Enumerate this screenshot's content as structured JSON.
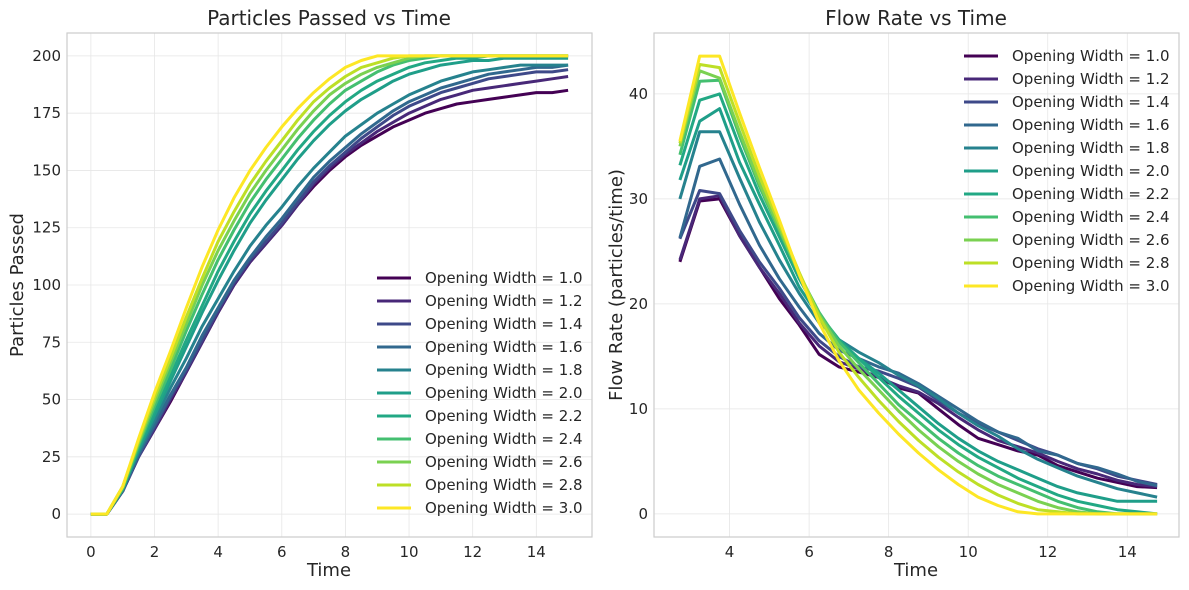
{
  "chart_data": [
    {
      "type": "line",
      "title": "Particles Passed vs Time",
      "xlabel": "Time",
      "ylabel": "Particles Passed",
      "xlim": [
        -0.75,
        15.75
      ],
      "ylim": [
        -10,
        210
      ],
      "xticks": [
        "0",
        "2",
        "4",
        "6",
        "8",
        "10",
        "12",
        "14"
      ],
      "yticks": [
        "0",
        "25",
        "50",
        "75",
        "100",
        "125",
        "150",
        "175",
        "200"
      ],
      "grid": true,
      "legend_position": "bottom-right",
      "x": [
        0,
        0.5,
        1,
        1.5,
        2,
        2.5,
        3,
        3.5,
        4,
        4.5,
        5,
        5.5,
        6,
        6.5,
        7,
        7.5,
        8,
        8.5,
        9,
        9.5,
        10,
        10.5,
        11,
        11.5,
        12,
        12.5,
        13,
        13.5,
        14,
        14.5,
        15
      ],
      "series": [
        {
          "name": "Opening Width = 1.0",
          "color": "#440154",
          "values": [
            0,
            0,
            10,
            25,
            37,
            49,
            62,
            75,
            88,
            100,
            110,
            118,
            126,
            135,
            143,
            150,
            156,
            161,
            165,
            169,
            172,
            175,
            177,
            179,
            180,
            181,
            182,
            183,
            184,
            184,
            185
          ]
        },
        {
          "name": "Opening Width = 1.2",
          "color": "#482878",
          "values": [
            0,
            0,
            10,
            25,
            37,
            50,
            62,
            75,
            88,
            100,
            110,
            118,
            126,
            135,
            144,
            151,
            157,
            162,
            167,
            171,
            175,
            178,
            181,
            183,
            185,
            186,
            187,
            188,
            189,
            190,
            191
          ]
        },
        {
          "name": "Opening Width = 1.4",
          "color": "#3e4989",
          "values": [
            0,
            0,
            10,
            25,
            38,
            51,
            63,
            76,
            89,
            101,
            111,
            119,
            127,
            136,
            145,
            152,
            158,
            164,
            169,
            174,
            178,
            181,
            184,
            186,
            188,
            190,
            191,
            192,
            193,
            193,
            194
          ]
        },
        {
          "name": "Opening Width = 1.6",
          "color": "#31688e",
          "values": [
            0,
            0,
            10,
            26,
            39,
            52,
            64,
            78,
            90,
            102,
            112,
            121,
            129,
            138,
            147,
            154,
            160,
            166,
            171,
            176,
            180,
            183,
            186,
            188,
            190,
            192,
            193,
            194,
            195,
            195,
            196
          ]
        },
        {
          "name": "Opening Width = 1.8",
          "color": "#26828e",
          "values": [
            0,
            0,
            11,
            27,
            41,
            55,
            68,
            82,
            94,
            106,
            117,
            126,
            134,
            143,
            151,
            158,
            165,
            170,
            175,
            179,
            183,
            186,
            189,
            191,
            193,
            194,
            195,
            196,
            196,
            196,
            196
          ]
        },
        {
          "name": "Opening Width = 2.0",
          "color": "#1f9e89",
          "values": [
            0,
            0,
            11,
            28,
            43,
            58,
            73,
            88,
            102,
            115,
            127,
            137,
            146,
            155,
            163,
            170,
            176,
            181,
            185,
            189,
            192,
            194,
            196,
            197,
            198,
            198,
            199,
            199,
            199,
            199,
            199
          ]
        },
        {
          "name": "Opening Width = 2.2",
          "color": "#22a884",
          "values": [
            0,
            0,
            11,
            29,
            45,
            60,
            76,
            91,
            106,
            119,
            131,
            141,
            150,
            159,
            167,
            174,
            180,
            185,
            189,
            192,
            195,
            197,
            198,
            199,
            199,
            200,
            200,
            200,
            200,
            200,
            200
          ]
        },
        {
          "name": "Opening Width = 2.4",
          "color": "#44bf70",
          "values": [
            0,
            0,
            11,
            30,
            47,
            63,
            80,
            96,
            111,
            124,
            136,
            146,
            155,
            164,
            172,
            179,
            185,
            189,
            193,
            196,
            198,
            199,
            200,
            200,
            200,
            200,
            200,
            200,
            200,
            200,
            200
          ]
        },
        {
          "name": "Opening Width = 2.6",
          "color": "#7ad151",
          "values": [
            0,
            0,
            12,
            31,
            49,
            66,
            83,
            100,
            115,
            128,
            140,
            150,
            159,
            168,
            176,
            183,
            188,
            192,
            195,
            197,
            199,
            200,
            200,
            200,
            200,
            200,
            200,
            200,
            200,
            200,
            200
          ]
        },
        {
          "name": "Opening Width = 2.8",
          "color": "#bddf26",
          "values": [
            0,
            0,
            12,
            32,
            51,
            68,
            86,
            103,
            119,
            132,
            144,
            154,
            163,
            172,
            180,
            186,
            191,
            195,
            197,
            199,
            200,
            200,
            200,
            200,
            200,
            200,
            200,
            200,
            200,
            200,
            200
          ]
        },
        {
          "name": "Opening Width = 3.0",
          "color": "#fde725",
          "values": [
            0,
            0,
            12,
            33,
            53,
            71,
            90,
            108,
            124,
            138,
            150,
            160,
            169,
            177,
            184,
            190,
            195,
            198,
            200,
            200,
            200,
            200,
            200,
            200,
            200,
            200,
            200,
            200,
            200,
            200,
            200
          ]
        }
      ]
    },
    {
      "type": "line",
      "title": "Flow Rate vs Time",
      "xlabel": "Time",
      "ylabel": "Flow Rate (particles/time)",
      "xlim": [
        2.1,
        15.3
      ],
      "ylim": [
        -2.2,
        45.8
      ],
      "xticks": [
        "4",
        "6",
        "8",
        "10",
        "12",
        "14"
      ],
      "yticks": [
        "0",
        "10",
        "20",
        "30",
        "40"
      ],
      "grid": true,
      "legend_position": "top-right",
      "x": [
        2.75,
        3.25,
        3.75,
        4.25,
        4.75,
        5.25,
        5.75,
        6.25,
        6.75,
        7.25,
        7.75,
        8.25,
        8.75,
        9.25,
        9.75,
        10.25,
        10.75,
        11.25,
        11.75,
        12.25,
        12.75,
        13.25,
        13.75,
        14.25,
        14.75
      ],
      "series": [
        {
          "name": "Opening Width = 1.0",
          "color": "#440154",
          "values": [
            24,
            29.8,
            30,
            26.5,
            23.5,
            20.5,
            18,
            15.2,
            14,
            13.5,
            13,
            12,
            11.5,
            10,
            8.5,
            7.2,
            6.6,
            6,
            5.6,
            4.6,
            4,
            3.4,
            3,
            2.6,
            2.5
          ]
        },
        {
          "name": "Opening Width = 1.2",
          "color": "#482878",
          "values": [
            24.2,
            30,
            30.3,
            26.5,
            23.5,
            21,
            18.2,
            16,
            14.5,
            13.8,
            13,
            12.2,
            11.6,
            10.5,
            9.2,
            8,
            7,
            6.4,
            5.8,
            5,
            4.3,
            3.8,
            3.2,
            2.8,
            2.6
          ]
        },
        {
          "name": "Opening Width = 1.4",
          "color": "#3e4989",
          "values": [
            26.2,
            30.8,
            30.5,
            27,
            24,
            21.5,
            18.7,
            16.5,
            15,
            14,
            13.6,
            12.9,
            12.1,
            10.8,
            9.6,
            8.6,
            7.8,
            7,
            6.2,
            5.6,
            4.8,
            4.3,
            3.6,
            3.2,
            2.8
          ]
        },
        {
          "name": "Opening Width = 1.6",
          "color": "#31688e",
          "values": [
            26.3,
            33.1,
            33.8,
            29.5,
            25.6,
            22.4,
            19.7,
            17.2,
            15.6,
            14.8,
            14,
            13.4,
            12.4,
            11.2,
            10,
            8.8,
            7.8,
            7.2,
            6,
            5.6,
            4.8,
            4.4,
            3.8,
            3.1,
            2.7
          ]
        },
        {
          "name": "Opening Width = 1.8",
          "color": "#26828e",
          "values": [
            30,
            36.4,
            36.4,
            32,
            27.8,
            24.2,
            21,
            18.2,
            16.6,
            15.4,
            14.4,
            13.2,
            12.2,
            11,
            9.6,
            8.4,
            7.4,
            6.2,
            5.2,
            4.4,
            3.6,
            3,
            2.4,
            2,
            1.6
          ]
        },
        {
          "name": "Opening Width = 2.0",
          "color": "#1f9e89",
          "values": [
            31.8,
            37.4,
            38.6,
            33.5,
            29.5,
            25.6,
            21.6,
            18.8,
            16.4,
            14.8,
            13.4,
            11.8,
            10.2,
            8.6,
            7.2,
            6,
            5,
            4.2,
            3.4,
            2.6,
            2,
            1.6,
            1.2,
            1.2,
            1.2
          ]
        },
        {
          "name": "Opening Width = 2.2",
          "color": "#22a884",
          "values": [
            33.2,
            39.4,
            40,
            35,
            30.4,
            26.4,
            22.4,
            19,
            16.6,
            14.8,
            13,
            11.2,
            9.6,
            8,
            6.6,
            5.4,
            4.4,
            3.4,
            2.6,
            1.8,
            1.2,
            0.8,
            0.4,
            0.2,
            0
          ]
        },
        {
          "name": "Opening Width = 2.4",
          "color": "#44bf70",
          "values": [
            34.2,
            41.2,
            41.3,
            36,
            31.2,
            27,
            22.8,
            19.2,
            16.4,
            14.4,
            12.4,
            10.4,
            8.8,
            7.2,
            5.8,
            4.6,
            3.6,
            2.8,
            2,
            1.2,
            0.6,
            0.2,
            0,
            0,
            0
          ]
        },
        {
          "name": "Opening Width = 2.6",
          "color": "#7ad151",
          "values": [
            35,
            42.2,
            41.5,
            36.4,
            31.5,
            27.2,
            22.9,
            19,
            16,
            13.8,
            11.8,
            9.8,
            8,
            6.4,
            5,
            3.8,
            2.8,
            2,
            1.2,
            0.6,
            0.2,
            0,
            0,
            0,
            0
          ]
        },
        {
          "name": "Opening Width = 2.8",
          "color": "#bddf26",
          "values": [
            35.3,
            42.8,
            42.5,
            37.3,
            32.2,
            27.6,
            23,
            18.8,
            15.4,
            13,
            10.8,
            8.8,
            7,
            5.4,
            4,
            2.8,
            1.8,
            1,
            0.4,
            0.2,
            0,
            0,
            0,
            0,
            0
          ]
        },
        {
          "name": "Opening Width = 3.0",
          "color": "#fde725",
          "values": [
            35.5,
            43.6,
            43.6,
            38.2,
            33,
            28,
            22.8,
            18.2,
            14.6,
            11.8,
            9.6,
            7.6,
            5.8,
            4.2,
            2.8,
            1.6,
            0.8,
            0.2,
            0,
            0,
            0,
            0,
            0,
            0,
            0
          ]
        }
      ]
    }
  ]
}
